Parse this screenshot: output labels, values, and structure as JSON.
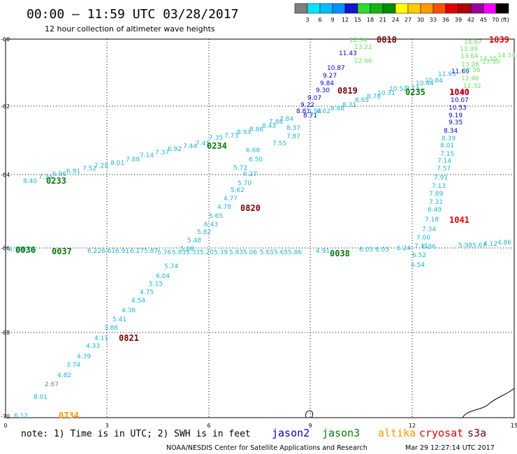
{
  "title": "00:00 – 11:59 UTC 03/28/2017",
  "subtitle": "12 hour collection of altimeter wave heights",
  "scale": {
    "labels": [
      "3",
      "6",
      "9",
      "12",
      "15",
      "18",
      "21",
      "24",
      "27",
      "30",
      "33",
      "36",
      "39",
      "42",
      "45",
      "70 (ft)"
    ],
    "colors": [
      "#7f7f7f",
      "#00e5ff",
      "#00bfff",
      "#0090ff",
      "#1414d2",
      "#2ddc2d",
      "#14b414",
      "#008c00",
      "#ffff00",
      "#ffcc00",
      "#ff9900",
      "#ff5000",
      "#e10000",
      "#b40000",
      "#9b009b",
      "#ff00ff",
      "#000000"
    ]
  },
  "axes": {
    "x_ticks": [
      "0",
      "3",
      "6",
      "9",
      "12",
      "15"
    ],
    "y_ticks": [
      "-60",
      "-62",
      "-64",
      "-66",
      "-68",
      "-70"
    ]
  },
  "colors": {
    "cyan": "#1eb4d2",
    "dark_green": "#0a780a",
    "light_green": "#64e664",
    "blue": "#0000c8",
    "maroon": "#780000",
    "red": "#e60000",
    "gray": "#808080",
    "orange": "#ff9600"
  },
  "tracks": {
    "t1": {
      "values": [
        "7.35",
        "7.73",
        "8.93",
        "8.86",
        "8.43",
        "7.88",
        "7.84",
        "8.37",
        "7.87",
        "7.55",
        "6.68",
        "6.50",
        "5.72",
        "6.27",
        "5.70",
        "5.62",
        "4.77",
        "4.78",
        "5.65",
        "6.43",
        "5.82",
        "5.48",
        "5.68",
        "5.74",
        "6.04",
        "5.15",
        "4.75",
        "4.54",
        "4.36",
        "5.41",
        "3.86",
        "4.11",
        "4.33",
        "4.39",
        "3.74",
        "4.82",
        "2.67",
        "8.01",
        "6.12"
      ],
      "times": [
        "0819",
        "0820",
        "0821",
        "0734"
      ]
    },
    "t2": {
      "values": [
        "12.94",
        "13.22",
        "12.66",
        "11.43",
        "10.87",
        "9.27",
        "9.84",
        "9.30",
        "9.07",
        "9.22",
        "8.81",
        "8.71",
        "8.54",
        "8.62",
        "8.88",
        "8.31",
        "8.65",
        "8.78",
        "10.31",
        "10.52",
        "9.73",
        "10.44",
        "10.84",
        "11.93",
        "11.69",
        "10.80",
        "10.07",
        "10.53",
        "9.19",
        "9.35",
        "8.34",
        "8.39",
        "8.01",
        "7.15",
        "7.14",
        "7.57",
        "7.91",
        "7.13",
        "7.89",
        "7.31",
        "6.49",
        "7.18",
        "7.34",
        "7.00",
        "7.11",
        "6.52",
        "6.54"
      ],
      "times": [
        "0818",
        "1040",
        "1041"
      ]
    },
    "t3": {
      "values": [
        "7.41",
        "7.44",
        "6.92",
        "7.37",
        "7.14",
        "7.88",
        "8.01",
        "7.28",
        "7.52",
        "6.91",
        "6.96",
        "7.34",
        "8.40"
      ],
      "times": [
        "0233",
        "0234",
        "0235"
      ]
    },
    "t4": {
      "values": [
        "8.32",
        "8.05",
        "6.22",
        "6.61",
        "6.91",
        "6.27",
        "5.87",
        "5.76",
        "5.83",
        "5.33",
        "5.20",
        "5.39",
        "5.83",
        "5.06",
        "5.65",
        "5.65",
        "5.86",
        "4.91",
        "6.03",
        "6.05",
        "6.24",
        "6.86",
        "5.98",
        "5.67",
        "4.12",
        "4.86"
      ],
      "times": [
        "0036",
        "0037",
        "0038"
      ]
    },
    "t5": {
      "values": [
        "14.87",
        "13.99",
        "13.64",
        "14.15",
        "13.28",
        "12.56",
        "13.50",
        "14.34",
        "12.46",
        "12.32"
      ],
      "times": [
        "1039"
      ]
    }
  },
  "legend": {
    "note": "note: 1) Time is in UTC; 2) SWH is in feet",
    "satellites": [
      {
        "name": "jason2",
        "color": "#0000c8"
      },
      {
        "name": "jason3",
        "color": "#0a780a"
      },
      {
        "name": "altika",
        "color": "#ff9600"
      },
      {
        "name": "cryosat",
        "color": "#e60000"
      },
      {
        "name": "s3a",
        "color": "#780000"
      }
    ]
  },
  "footer": "NOAA/NESDIS Center for Satellite Applications and Research",
  "timestamp": "Mar 29 12:27:14 UTC 2017"
}
